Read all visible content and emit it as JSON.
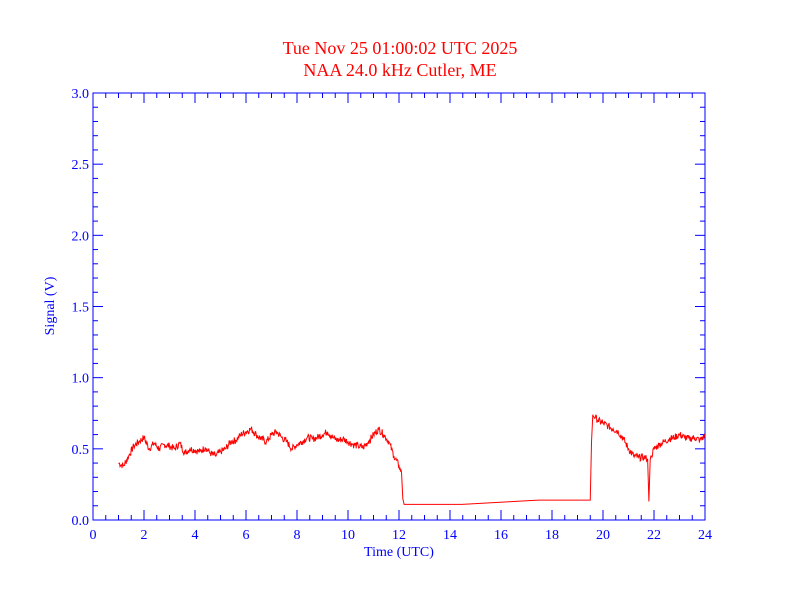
{
  "colors": {
    "title": "#ff0000",
    "axes": "#0000ff",
    "series": "#ff0000",
    "background": "#ffffff"
  },
  "chart_data": {
    "type": "line",
    "title": "Tue Nov 25 01:00:02 UTC 2025",
    "subtitle": "NAA 24.0 kHz Cutler, ME",
    "xlabel": "Time (UTC)",
    "ylabel": "Signal (V)",
    "xlim": [
      0,
      24
    ],
    "ylim": [
      0,
      3.0
    ],
    "xticks": [
      "0",
      "2",
      "4",
      "6",
      "8",
      "10",
      "12",
      "14",
      "16",
      "18",
      "20",
      "22",
      "24"
    ],
    "yticks": [
      "0.0",
      "0.5",
      "1.0",
      "1.5",
      "2.0",
      "2.5",
      "3.0"
    ],
    "grid": false,
    "legend": "none",
    "series": [
      {
        "x": [
          1.0,
          1.2,
          1.4,
          1.6,
          1.8,
          2.0,
          2.2,
          2.4,
          2.6,
          2.8,
          3.0,
          3.2,
          3.4,
          3.6,
          3.8,
          4.0,
          4.2,
          4.4,
          4.6,
          4.8,
          5.0,
          5.2,
          5.4,
          5.6,
          5.8,
          6.0,
          6.2,
          6.4,
          6.6,
          6.8,
          7.0,
          7.2,
          7.4,
          7.6,
          7.8,
          8.0,
          8.2,
          8.4,
          8.6,
          8.8,
          9.0,
          9.2,
          9.4,
          9.6,
          9.8,
          10.0,
          10.2,
          10.4,
          10.6,
          10.8,
          11.0,
          11.2,
          11.4,
          11.6,
          11.8,
          12.0,
          12.1,
          12.15,
          12.2,
          12.3,
          12.5,
          13.0,
          13.5,
          14.0,
          14.5,
          15.0,
          15.5,
          16.0,
          16.5,
          17.0,
          17.5,
          18.0,
          18.5,
          19.0,
          19.5,
          19.55,
          19.6,
          19.7,
          19.8,
          20.0,
          20.2,
          20.4,
          20.6,
          20.8,
          21.0,
          21.2,
          21.4,
          21.6,
          21.75,
          21.8,
          21.85,
          21.9,
          22.0,
          22.2,
          22.4,
          22.6,
          22.8,
          23.0,
          23.2,
          23.4,
          23.6,
          23.8,
          24.0
        ],
        "y": [
          0.4,
          0.38,
          0.45,
          0.52,
          0.55,
          0.58,
          0.5,
          0.54,
          0.5,
          0.53,
          0.52,
          0.5,
          0.54,
          0.47,
          0.5,
          0.49,
          0.48,
          0.51,
          0.47,
          0.45,
          0.48,
          0.5,
          0.55,
          0.56,
          0.6,
          0.62,
          0.64,
          0.6,
          0.57,
          0.55,
          0.6,
          0.62,
          0.58,
          0.55,
          0.5,
          0.53,
          0.55,
          0.58,
          0.57,
          0.58,
          0.6,
          0.62,
          0.58,
          0.56,
          0.57,
          0.55,
          0.53,
          0.52,
          0.51,
          0.55,
          0.6,
          0.64,
          0.6,
          0.55,
          0.45,
          0.38,
          0.33,
          0.15,
          0.11,
          0.11,
          0.11,
          0.11,
          0.11,
          0.11,
          0.11,
          0.115,
          0.12,
          0.125,
          0.13,
          0.135,
          0.14,
          0.14,
          0.14,
          0.14,
          0.14,
          0.55,
          0.74,
          0.72,
          0.7,
          0.68,
          0.66,
          0.64,
          0.62,
          0.57,
          0.5,
          0.45,
          0.44,
          0.44,
          0.43,
          0.13,
          0.42,
          0.45,
          0.5,
          0.53,
          0.55,
          0.57,
          0.58,
          0.6,
          0.58,
          0.57,
          0.58,
          0.56,
          0.59
        ]
      }
    ]
  }
}
